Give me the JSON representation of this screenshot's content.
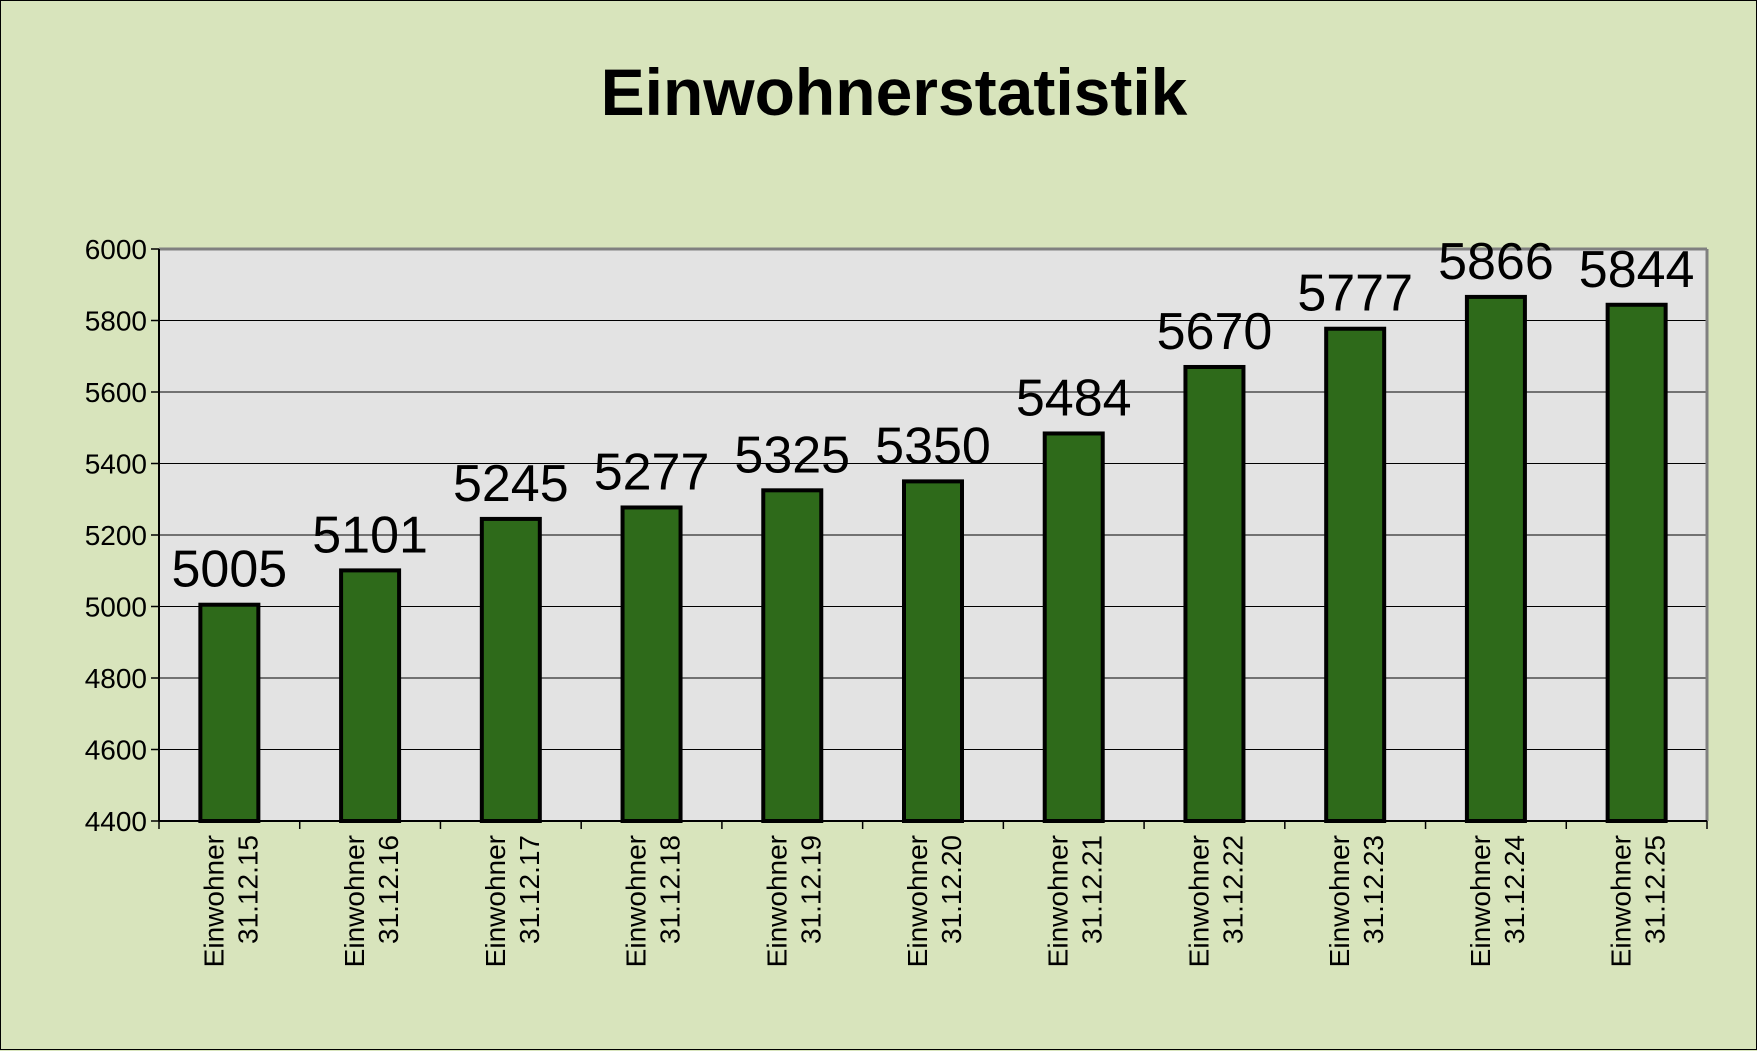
{
  "chart_data": {
    "type": "bar",
    "title": "Einwohnerstatistik",
    "xlabel": "",
    "ylabel": "",
    "categories": [
      [
        "Einwohner",
        "31.12.15"
      ],
      [
        "Einwohner",
        "31.12.16"
      ],
      [
        "Einwohner",
        "31.12.17"
      ],
      [
        "Einwohner",
        "31.12.18"
      ],
      [
        "Einwohner",
        "31.12.19"
      ],
      [
        "Einwohner",
        "31.12.20"
      ],
      [
        "Einwohner",
        "31.12.21"
      ],
      [
        "Einwohner",
        "31.12.22"
      ],
      [
        "Einwohner",
        "31.12.23"
      ],
      [
        "Einwohner",
        "31.12.24"
      ],
      [
        "Einwohner",
        "31.12.25"
      ]
    ],
    "values": [
      5005,
      5101,
      5245,
      5277,
      5325,
      5350,
      5484,
      5670,
      5777,
      5866,
      5844
    ],
    "data_labels": [
      "5005",
      "5101",
      "5245",
      "5277",
      "5325",
      "5350",
      "5484",
      "5670",
      "5777",
      "5866",
      "5844"
    ],
    "ylim": [
      4400,
      6000
    ],
    "yticks": [
      4400,
      4600,
      4800,
      5000,
      5200,
      5400,
      5600,
      5800,
      6000
    ],
    "ytick_labels": [
      "4400",
      "4600",
      "4800",
      "5000",
      "5200",
      "5400",
      "5600",
      "5800",
      "6000"
    ],
    "grid": true,
    "legend": "none",
    "colors": {
      "bar": "#2e6a1a",
      "bar_border": "#000000",
      "plot_background": "#e3e3e3",
      "chart_background": "#d8e4bc",
      "gridline": "#000000",
      "plot_border": "#808080"
    }
  }
}
